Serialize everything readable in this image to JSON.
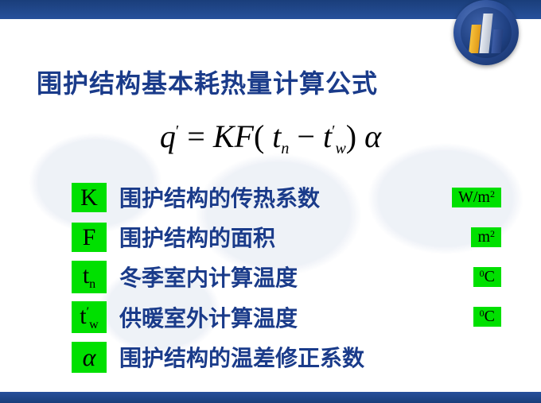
{
  "title": "围护结构基本耗热量计算公式",
  "formula": {
    "q": "q",
    "prime": "′",
    "eq": " = ",
    "K": "K",
    "F": "F",
    "lp": "(",
    "t": "t",
    "n": "n",
    "minus": " − ",
    "w": "w",
    "rp": ")",
    "sp": "   ",
    "alpha": "α"
  },
  "rows": [
    {
      "sym": "K",
      "sym_sub": "",
      "sym_sup": "",
      "desc": "围护结构的传热系数",
      "unit_main": "W/m",
      "unit_sup": "2"
    },
    {
      "sym": "F",
      "sym_sub": "",
      "sym_sup": "",
      "desc": "围护结构的面积",
      "unit_main": "m",
      "unit_sup": "2"
    },
    {
      "sym": "t",
      "sym_sub": "n",
      "sym_sup": "",
      "desc": "冬季室内计算温度",
      "unit_main": "C",
      "unit_deg": "0"
    },
    {
      "sym": "t",
      "sym_sub": "w",
      "sym_sup": "′",
      "desc": "供暖室外计算温度",
      "unit_main": "C",
      "unit_deg": "0"
    },
    {
      "sym": "α",
      "sym_sub": "",
      "sym_sup": "",
      "desc": "围护结构的温差修正系数",
      "unit_main": "",
      "unit_sup": ""
    }
  ],
  "colors": {
    "accent": "#1a3b8a",
    "highlight": "#00e000",
    "bar_top": "#27509b"
  }
}
